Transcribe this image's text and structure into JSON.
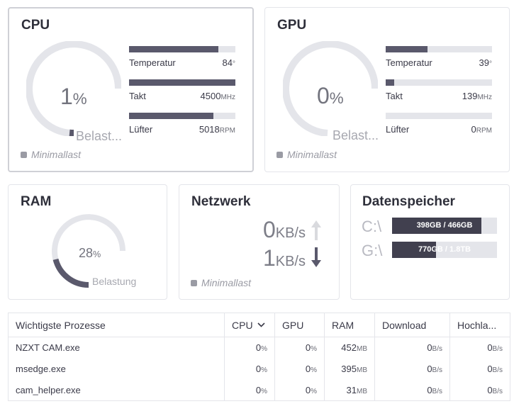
{
  "cpu": {
    "title": "CPU",
    "load_value": "1",
    "load_unit": "%",
    "load_fraction": 0.01,
    "load_label": "Belast...",
    "status": "Minimallast",
    "metrics": [
      {
        "label": "Temperatur",
        "value": "84",
        "unit": "°",
        "fraction": 0.84
      },
      {
        "label": "Takt",
        "value": "4500",
        "unit": "MHz",
        "fraction": 1.0
      },
      {
        "label": "Lüfter",
        "value": "5018",
        "unit": "RPM",
        "fraction": 0.79
      }
    ]
  },
  "gpu": {
    "title": "GPU",
    "load_value": "0",
    "load_unit": "%",
    "load_fraction": 0.0,
    "load_label": "Belast...",
    "status": "Minimallast",
    "metrics": [
      {
        "label": "Temperatur",
        "value": "39",
        "unit": "°",
        "fraction": 0.39
      },
      {
        "label": "Takt",
        "value": "139",
        "unit": "MHz",
        "fraction": 0.08
      },
      {
        "label": "Lüfter",
        "value": "0",
        "unit": "RPM",
        "fraction": 0.0
      }
    ]
  },
  "ram": {
    "title": "RAM",
    "load_value": "28",
    "load_unit": "%",
    "load_fraction": 0.28,
    "load_label": "Belastung"
  },
  "network": {
    "title": "Netzwerk",
    "upload_value": "0",
    "upload_unit": "KB/s",
    "download_value": "1",
    "download_unit": "KB/s",
    "status": "Minimallast"
  },
  "storage": {
    "title": "Datenspeicher",
    "drives": [
      {
        "letter": "C:\\",
        "usage": "398GB / 466GB",
        "fraction": 0.85
      },
      {
        "letter": "G:\\",
        "usage": "770GB / 1.8TB",
        "fraction": 0.42
      }
    ]
  },
  "processes": {
    "headers": {
      "name": "Wichtigste Prozesse",
      "cpu": "CPU",
      "gpu": "GPU",
      "ram": "RAM",
      "download": "Download",
      "upload": "Hochla..."
    },
    "rows": [
      {
        "name": "NZXT CAM.exe",
        "cpu": "0",
        "gpu": "0",
        "ram": "452",
        "download": "0",
        "upload": "0"
      },
      {
        "name": "msedge.exe",
        "cpu": "0",
        "gpu": "0",
        "ram": "395",
        "download": "0",
        "upload": "0"
      },
      {
        "name": "cam_helper.exe",
        "cpu": "0",
        "gpu": "0",
        "ram": "31",
        "download": "0",
        "upload": "0"
      }
    ],
    "units": {
      "percent": "%",
      "memory": "MB",
      "rate": "B/s"
    }
  },
  "colors": {
    "accent": "#5a596c",
    "track": "#e4e5ea",
    "drive_fill": "#41404f",
    "muted": "#9a9ba4"
  },
  "icons": {
    "upload": "arrow-up-icon",
    "download": "arrow-down-icon",
    "sort": "chevron-down-icon",
    "status": "status-dot-icon"
  }
}
